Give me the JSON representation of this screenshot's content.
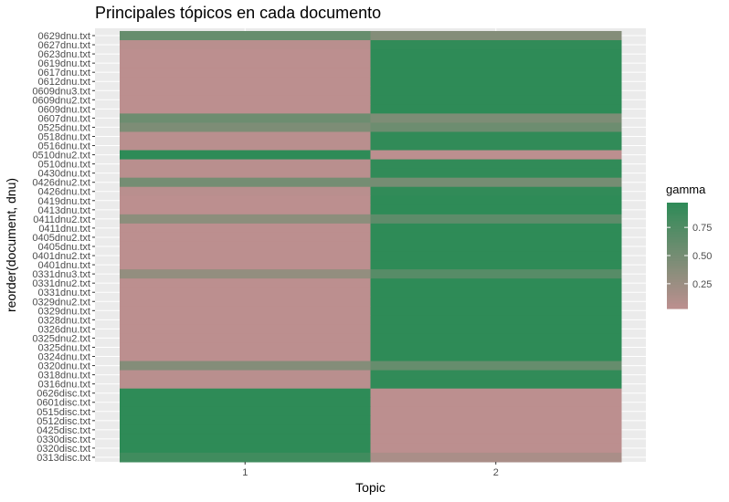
{
  "chart_data": {
    "type": "heatmap",
    "title": "Principales tópicos en cada documento",
    "xlabel": "Topic",
    "ylabel": "reorder(document, dnu)",
    "x": [
      "1",
      "2"
    ],
    "y": [
      "0629dnu.txt",
      "0627dnu.txt",
      "0623dnu.txt",
      "0619dnu.txt",
      "0617dnu.txt",
      "0612dnu.txt",
      "0609dnu3.txt",
      "0609dnu2.txt",
      "0609dnu.txt",
      "0607dnu.txt",
      "0525dnu.txt",
      "0518dnu.txt",
      "0516dnu.txt",
      "0510dnu2.txt",
      "0510dnu.txt",
      "0430dnu.txt",
      "0426dnu2.txt",
      "0426dnu.txt",
      "0419dnu.txt",
      "0413dnu.txt",
      "0411dnu2.txt",
      "0411dnu.txt",
      "0405dnu2.txt",
      "0405dnu.txt",
      "0401dnu2.txt",
      "0401dnu.txt",
      "0331dnu3.txt",
      "0331dnu2.txt",
      "0331dnu.txt",
      "0329dnu2.txt",
      "0329dnu.txt",
      "0328dnu.txt",
      "0326dnu.txt",
      "0325dnu2.txt",
      "0325dnu.txt",
      "0324dnu.txt",
      "0320dnu.txt",
      "0318dnu.txt",
      "0316dnu.txt",
      "0626disc.txt",
      "0601disc.txt",
      "0515disc.txt",
      "0512disc.txt",
      "0425disc.txt",
      "0330disc.txt",
      "0320disc.txt",
      "0313disc.txt"
    ],
    "y_tick_labels": [
      "0629dnu.txt",
      "0627dnu.txt",
      "0623dnu.txt",
      "0619dnu.txt",
      "0617dnu.txt",
      "0612dnu.txt",
      "0609dnu3.txt",
      "0609dnu2.txt",
      "0609dnu.txt",
      "0607dnu.txt",
      "0525dnu.txt",
      "0518dnu.txt",
      "0516dnu.txt",
      "0510dnu2.txt",
      "0510dnu.txt",
      "0430dnu.txt",
      "0426dnu2.txt",
      "0426dnu.txt",
      "0419dnu.txt",
      "0413dnu.txt",
      "0411dnu2.txt",
      "0411dnu.txt",
      "0405dnu2.txt",
      "0405dnu.txt",
      "0401dnu2.txt",
      "0401dnu.txt",
      "0331dnu3.txt",
      "0331dnu2.txt",
      "0331dnu.txt",
      "0329dnu2.txt",
      "0329dnu.txt",
      "0328dnu.txt",
      "0326dnu.txt",
      "0325dnu2.txt",
      "0325dnu.txt",
      "0324dnu.txt",
      "0320dnu.txt",
      "0318dnu.txt",
      "0316dnu.txt",
      "0626disc.txt",
      "0601disc.txt",
      "0515disc.txt",
      "0512disc.txt",
      "0425disc.txt",
      "0330disc.txt",
      "0320disc.txt",
      "0313disc.txt"
    ],
    "values": [
      [
        0.6,
        0.4
      ],
      [
        0.05,
        0.95
      ],
      [
        0.03,
        0.97
      ],
      [
        0.03,
        0.97
      ],
      [
        0.03,
        0.97
      ],
      [
        0.03,
        0.97
      ],
      [
        0.03,
        0.97
      ],
      [
        0.03,
        0.97
      ],
      [
        0.03,
        0.97
      ],
      [
        0.55,
        0.45
      ],
      [
        0.45,
        0.55
      ],
      [
        0.05,
        0.95
      ],
      [
        0.05,
        0.95
      ],
      [
        0.97,
        0.03
      ],
      [
        0.05,
        0.95
      ],
      [
        0.05,
        0.95
      ],
      [
        0.5,
        0.5
      ],
      [
        0.05,
        0.95
      ],
      [
        0.03,
        0.97
      ],
      [
        0.03,
        0.97
      ],
      [
        0.35,
        0.65
      ],
      [
        0.03,
        0.97
      ],
      [
        0.03,
        0.97
      ],
      [
        0.03,
        0.97
      ],
      [
        0.03,
        0.97
      ],
      [
        0.03,
        0.97
      ],
      [
        0.3,
        0.7
      ],
      [
        0.03,
        0.97
      ],
      [
        0.03,
        0.97
      ],
      [
        0.03,
        0.97
      ],
      [
        0.03,
        0.97
      ],
      [
        0.03,
        0.97
      ],
      [
        0.03,
        0.97
      ],
      [
        0.03,
        0.97
      ],
      [
        0.03,
        0.97
      ],
      [
        0.03,
        0.97
      ],
      [
        0.4,
        0.6
      ],
      [
        0.05,
        0.95
      ],
      [
        0.05,
        0.95
      ],
      [
        0.97,
        0.03
      ],
      [
        0.97,
        0.03
      ],
      [
        0.97,
        0.03
      ],
      [
        0.97,
        0.03
      ],
      [
        0.97,
        0.03
      ],
      [
        0.97,
        0.03
      ],
      [
        0.97,
        0.03
      ],
      [
        0.85,
        0.15
      ]
    ],
    "color_scale": {
      "low": "#bc8f8f",
      "high": "#2e8b57",
      "limits": [
        0.03,
        0.97
      ]
    },
    "legend": {
      "title": "gamma",
      "breaks": [
        0.75,
        0.5,
        0.25
      ],
      "labels": [
        "0.75",
        "0.50",
        "0.25"
      ],
      "position": "right"
    },
    "panel_background": "#ebebeb",
    "grid": true
  }
}
